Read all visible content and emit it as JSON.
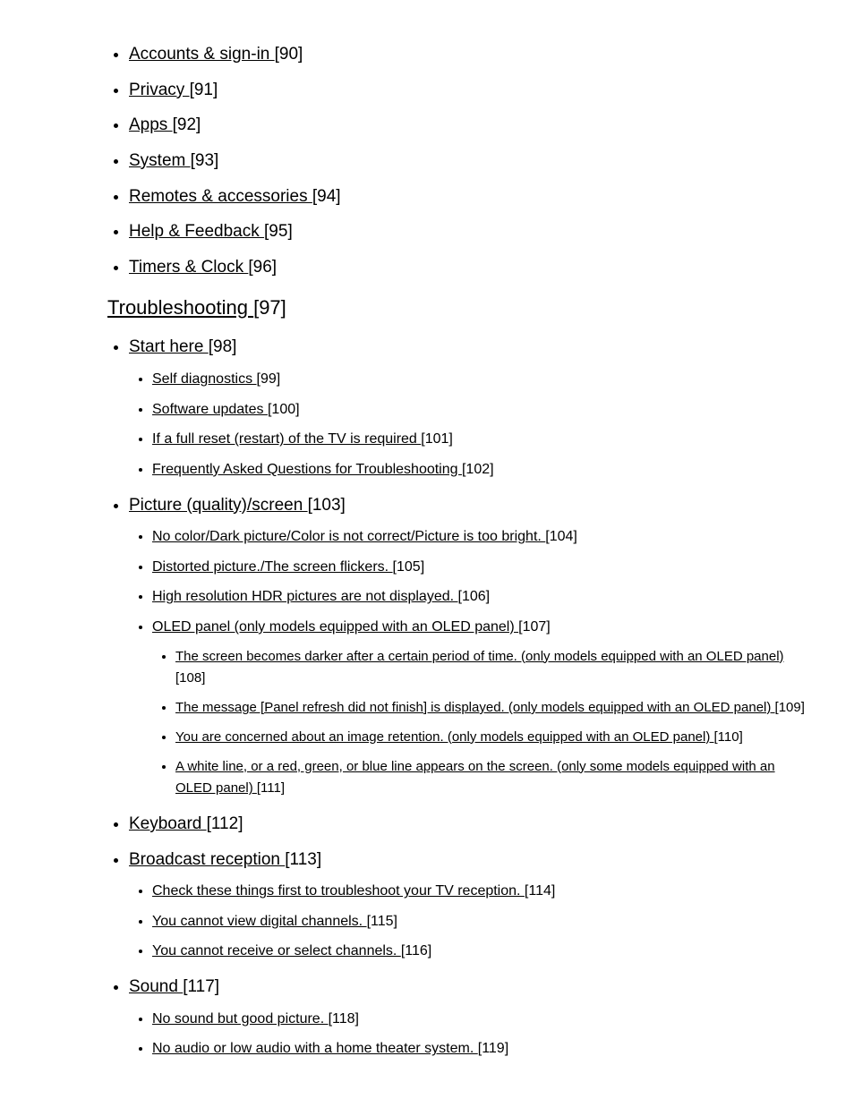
{
  "top_items": [
    {
      "label": "Accounts & sign-in ",
      "ref": "[90]"
    },
    {
      "label": "Privacy ",
      "ref": "[91]"
    },
    {
      "label": "Apps ",
      "ref": "[92]"
    },
    {
      "label": "System ",
      "ref": "[93]"
    },
    {
      "label": "Remotes & accessories ",
      "ref": "[94]"
    },
    {
      "label": "Help & Feedback ",
      "ref": "[95]"
    },
    {
      "label": "Timers & Clock ",
      "ref": "[96]"
    }
  ],
  "section": {
    "label": "Troubleshooting ",
    "ref": "[97]"
  },
  "section_items": [
    {
      "label": "Start here ",
      "ref": "[98]",
      "children": [
        {
          "label": "Self diagnostics ",
          "ref": "[99]"
        },
        {
          "label": "Software updates ",
          "ref": "[100]"
        },
        {
          "label": "If a full reset (restart) of the TV is required ",
          "ref": "[101]"
        },
        {
          "label": "Frequently Asked Questions for Troubleshooting ",
          "ref": "[102]"
        }
      ]
    },
    {
      "label": "Picture (quality)/screen ",
      "ref": "[103]",
      "children": [
        {
          "label": "No color/Dark picture/Color is not correct/Picture is too bright. ",
          "ref": "[104]"
        },
        {
          "label": "Distorted picture./The screen flickers. ",
          "ref": "[105]"
        },
        {
          "label": "High resolution HDR pictures are not displayed. ",
          "ref": "[106]"
        },
        {
          "label": "OLED panel (only models equipped with an OLED panel) ",
          "ref": "[107]",
          "children": [
            {
              "label": "The screen becomes darker after a certain period of time. (only models equipped with an OLED panel) ",
              "ref": "[108]"
            },
            {
              "label": "The message [Panel refresh did not finish] is displayed. (only models equipped with an OLED panel) ",
              "ref": "[109]"
            },
            {
              "label": "You are concerned about an image retention. (only models equipped with an OLED panel) ",
              "ref": "[110]"
            },
            {
              "label": "A white line, or a red, green, or blue line appears on the screen. (only some models equipped with an OLED panel) ",
              "ref": "[111]"
            }
          ]
        }
      ]
    },
    {
      "label": "Keyboard ",
      "ref": "[112]"
    },
    {
      "label": "Broadcast reception ",
      "ref": "[113]",
      "children": [
        {
          "label": "Check these things first to troubleshoot your TV reception. ",
          "ref": "[114]"
        },
        {
          "label": "You cannot view digital channels. ",
          "ref": "[115]"
        },
        {
          "label": "You cannot receive or select channels. ",
          "ref": "[116]"
        }
      ]
    },
    {
      "label": "Sound ",
      "ref": "[117]",
      "children": [
        {
          "label": "No sound but good picture. ",
          "ref": "[118]"
        },
        {
          "label": "No audio or low audio with a home theater system. ",
          "ref": "[119]"
        }
      ]
    }
  ]
}
